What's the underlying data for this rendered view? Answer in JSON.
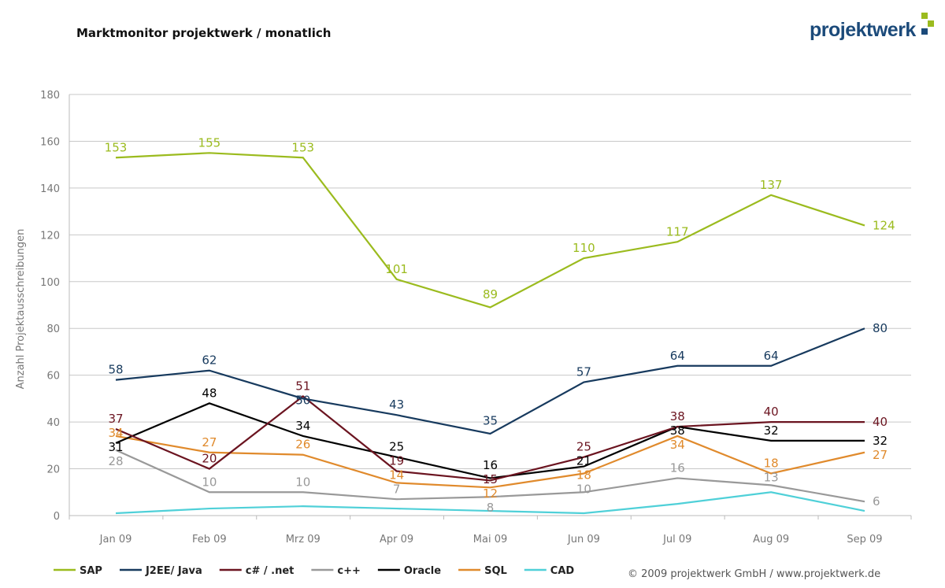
{
  "header": {
    "title": "Marktmonitor projektwerk / monatlich",
    "logo": "projektwerk"
  },
  "footer": {
    "copyright": "© 2009 projektwerk GmbH / www.projektwerk.de"
  },
  "chart_data": {
    "type": "line",
    "title": "Marktmonitor projektwerk / monatlich",
    "xlabel": "",
    "ylabel": "Anzahl Projektausschreibungen",
    "ylim": [
      0,
      180
    ],
    "yticks": [
      0,
      20,
      40,
      60,
      80,
      100,
      120,
      140,
      160,
      180
    ],
    "grid": true,
    "legend": "bottom",
    "categories": [
      "Jan 09",
      "Feb 09",
      "Mrz 09",
      "Apr 09",
      "Mai 09",
      "Jun 09",
      "Jul 09",
      "Aug 09",
      "Sep 09"
    ],
    "series": [
      {
        "name": "SAP",
        "color": "#9bbb1e",
        "values": [
          153,
          155,
          153,
          101,
          89,
          110,
          117,
          137,
          124
        ],
        "labels": true
      },
      {
        "name": "J2EE/ Java",
        "color": "#173a5e",
        "values": [
          58,
          62,
          50,
          43,
          35,
          57,
          64,
          64,
          80
        ],
        "labels": true
      },
      {
        "name": "c# / .net",
        "color": "#6b1420",
        "values": [
          37,
          20,
          51,
          19,
          15,
          25,
          38,
          40,
          40
        ],
        "labels": true
      },
      {
        "name": "c++",
        "color": "#999999",
        "values": [
          28,
          10,
          10,
          7,
          8,
          10,
          16,
          13,
          6
        ],
        "labels": true
      },
      {
        "name": "Oracle",
        "color": "#000000",
        "values": [
          31,
          48,
          34,
          25,
          16,
          21,
          38,
          32,
          32
        ],
        "labels": true
      },
      {
        "name": "SQL",
        "color": "#e08a2c",
        "values": [
          34,
          27,
          26,
          14,
          12,
          18,
          34,
          18,
          27
        ],
        "labels": true
      },
      {
        "name": "CAD",
        "color": "#4fd0d8",
        "values": [
          1,
          3,
          4,
          3,
          2,
          1,
          5,
          10,
          2
        ],
        "labels": false
      }
    ]
  }
}
